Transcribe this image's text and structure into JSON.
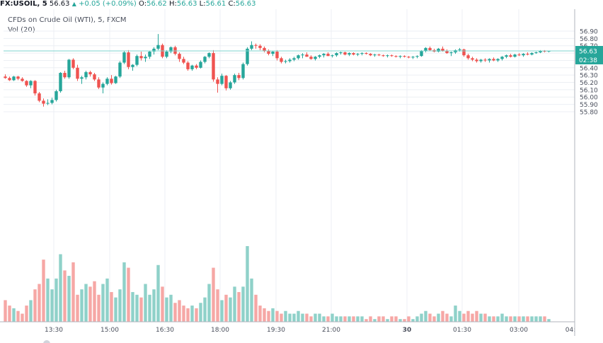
{
  "header": {
    "symbol": "FX:USOIL, 5",
    "last": "56.63",
    "change": "+0.05 (+0.09%)",
    "o_label": "O:",
    "o": "56.62",
    "h_label": "H:",
    "h": "56.63",
    "l_label": "L:",
    "l": "56.61",
    "c_label": "C:",
    "c": "56.63"
  },
  "legend": {
    "title": "CFDs on Crude Oil (WTI), 5, FXCM",
    "volume": "Vol (20)"
  },
  "colors": {
    "up": "#26a69a",
    "down": "#ef5350",
    "up_volume": "#8fd1c9",
    "down_volume": "#f6a7a5",
    "price_line": "#7fd6cf",
    "grid": "#eceff4"
  },
  "chart_data": {
    "type": "candlestick",
    "y_ticks": [
      "56.90",
      "56.80",
      "56.70",
      "56.60",
      "56.50",
      "56.40",
      "56.30",
      "56.20",
      "56.10",
      "56.00",
      "55.90",
      "55.80"
    ],
    "ylim": [
      55.75,
      56.95
    ],
    "x_ticks": [
      "13:30",
      "15:00",
      "16:30",
      "18:00",
      "19:30",
      "21:00",
      "30",
      "01:30",
      "03:00",
      "04:"
    ],
    "x_ticks_bold": [
      "30"
    ],
    "last_price_label": "56.63",
    "countdown_label": "02:38",
    "grid": true,
    "bar_interval": "5 min",
    "first_bar": "12:30",
    "ohlc": [
      [
        56.28,
        56.31,
        56.25,
        56.26
      ],
      [
        56.26,
        56.28,
        56.22,
        56.23
      ],
      [
        56.23,
        56.29,
        56.22,
        56.28
      ],
      [
        56.28,
        56.29,
        56.23,
        56.25
      ],
      [
        56.25,
        56.27,
        56.21,
        56.22
      ],
      [
        56.22,
        56.23,
        56.14,
        56.16
      ],
      [
        56.16,
        56.23,
        56.12,
        56.22
      ],
      [
        56.22,
        56.23,
        56.02,
        56.05
      ],
      [
        56.05,
        56.07,
        55.93,
        55.95
      ],
      [
        55.95,
        55.98,
        55.87,
        55.91
      ],
      [
        55.91,
        55.97,
        55.89,
        55.92
      ],
      [
        55.92,
        55.99,
        55.9,
        55.96
      ],
      [
        55.96,
        56.1,
        55.94,
        56.08
      ],
      [
        56.08,
        56.34,
        56.06,
        56.33
      ],
      [
        56.33,
        56.36,
        56.25,
        56.27
      ],
      [
        56.27,
        56.52,
        56.25,
        56.51
      ],
      [
        56.51,
        56.53,
        56.38,
        56.4
      ],
      [
        56.4,
        56.44,
        56.22,
        56.25
      ],
      [
        56.25,
        56.29,
        56.18,
        56.27
      ],
      [
        56.27,
        56.36,
        56.24,
        56.34
      ],
      [
        56.34,
        56.36,
        56.28,
        56.31
      ],
      [
        56.31,
        56.33,
        56.22,
        56.24
      ],
      [
        56.24,
        56.27,
        56.11,
        56.13
      ],
      [
        56.13,
        56.2,
        56.05,
        56.18
      ],
      [
        56.18,
        56.27,
        56.16,
        56.25
      ],
      [
        56.25,
        56.3,
        56.17,
        56.19
      ],
      [
        56.19,
        56.29,
        56.18,
        56.28
      ],
      [
        56.28,
        56.49,
        56.26,
        56.47
      ],
      [
        56.47,
        56.63,
        56.45,
        56.61
      ],
      [
        56.61,
        56.64,
        56.38,
        56.41
      ],
      [
        56.41,
        56.45,
        56.36,
        56.44
      ],
      [
        56.44,
        56.58,
        56.42,
        56.56
      ],
      [
        56.56,
        56.62,
        56.5,
        56.53
      ],
      [
        56.53,
        56.58,
        56.48,
        56.55
      ],
      [
        56.55,
        56.63,
        56.52,
        56.62
      ],
      [
        56.62,
        56.68,
        56.58,
        56.66
      ],
      [
        56.66,
        56.86,
        56.64,
        56.71
      ],
      [
        56.71,
        56.73,
        56.53,
        56.55
      ],
      [
        56.55,
        56.64,
        56.53,
        56.62
      ],
      [
        56.62,
        56.69,
        56.6,
        56.68
      ],
      [
        56.68,
        56.7,
        56.57,
        56.59
      ],
      [
        56.59,
        56.61,
        56.48,
        56.52
      ],
      [
        56.52,
        56.55,
        56.45,
        56.47
      ],
      [
        56.47,
        56.49,
        56.36,
        56.38
      ],
      [
        56.38,
        56.44,
        56.36,
        56.43
      ],
      [
        56.43,
        56.45,
        56.38,
        56.4
      ],
      [
        56.4,
        56.5,
        56.39,
        56.48
      ],
      [
        56.48,
        56.56,
        56.46,
        56.55
      ],
      [
        56.55,
        56.61,
        56.53,
        56.6
      ],
      [
        56.6,
        56.64,
        56.21,
        56.24
      ],
      [
        56.24,
        56.27,
        56.06,
        56.18
      ],
      [
        56.18,
        56.32,
        56.16,
        56.29
      ],
      [
        56.29,
        56.3,
        56.09,
        56.12
      ],
      [
        56.12,
        56.22,
        56.1,
        56.2
      ],
      [
        56.2,
        56.32,
        56.18,
        56.3
      ],
      [
        56.3,
        56.33,
        56.23,
        56.26
      ],
      [
        56.26,
        56.47,
        56.24,
        56.45
      ],
      [
        56.45,
        56.68,
        56.43,
        56.66
      ],
      [
        56.66,
        56.76,
        56.64,
        56.71
      ],
      [
        56.71,
        56.73,
        56.66,
        56.7
      ],
      [
        56.7,
        56.72,
        56.64,
        56.67
      ],
      [
        56.67,
        56.69,
        56.61,
        56.63
      ],
      [
        56.63,
        56.65,
        56.57,
        56.59
      ],
      [
        56.59,
        56.63,
        56.56,
        56.62
      ],
      [
        56.62,
        56.64,
        56.5,
        56.53
      ],
      [
        56.53,
        56.55,
        56.46,
        56.48
      ],
      [
        56.48,
        56.51,
        56.46,
        56.49
      ],
      [
        56.49,
        56.53,
        56.47,
        56.51
      ],
      [
        56.51,
        56.55,
        56.49,
        56.53
      ],
      [
        56.53,
        56.58,
        56.51,
        56.57
      ],
      [
        56.57,
        56.6,
        56.53,
        56.58
      ],
      [
        56.58,
        56.61,
        56.55,
        56.55
      ],
      [
        56.55,
        56.57,
        56.51,
        56.52
      ],
      [
        56.52,
        56.56,
        56.5,
        56.55
      ],
      [
        56.55,
        56.58,
        56.53,
        56.57
      ],
      [
        56.57,
        56.6,
        56.54,
        56.59
      ],
      [
        56.59,
        56.61,
        56.56,
        56.56
      ],
      [
        56.56,
        56.58,
        56.54,
        56.57
      ],
      [
        56.57,
        56.61,
        56.55,
        56.6
      ],
      [
        56.6,
        56.62,
        56.58,
        56.61
      ],
      [
        56.61,
        56.62,
        56.57,
        56.58
      ],
      [
        56.58,
        56.61,
        56.56,
        56.6
      ],
      [
        56.6,
        56.61,
        56.57,
        56.58
      ],
      [
        56.58,
        56.6,
        56.56,
        56.59
      ],
      [
        56.59,
        56.61,
        56.57,
        56.6
      ],
      [
        56.6,
        56.61,
        56.58,
        56.59
      ],
      [
        56.59,
        56.6,
        56.56,
        56.57
      ],
      [
        56.57,
        56.59,
        56.55,
        56.58
      ],
      [
        56.58,
        56.59,
        56.56,
        56.57
      ],
      [
        56.57,
        56.58,
        56.55,
        56.56
      ],
      [
        56.56,
        56.58,
        56.54,
        56.57
      ],
      [
        56.57,
        56.58,
        56.55,
        56.56
      ],
      [
        56.56,
        56.57,
        56.54,
        56.55
      ],
      [
        56.55,
        56.57,
        56.53,
        56.56
      ],
      [
        56.56,
        56.57,
        56.54,
        56.55
      ],
      [
        56.55,
        56.56,
        56.53,
        56.54
      ],
      [
        56.54,
        56.56,
        56.52,
        56.55
      ],
      [
        56.55,
        56.57,
        56.53,
        56.56
      ],
      [
        56.56,
        56.64,
        56.55,
        56.63
      ],
      [
        56.63,
        56.68,
        56.61,
        56.67
      ],
      [
        56.67,
        56.69,
        56.63,
        56.64
      ],
      [
        56.64,
        56.66,
        56.61,
        56.62
      ],
      [
        56.62,
        56.67,
        56.61,
        56.66
      ],
      [
        56.66,
        56.69,
        56.62,
        56.63
      ],
      [
        56.63,
        56.65,
        56.59,
        56.6
      ],
      [
        56.6,
        56.62,
        56.56,
        56.61
      ],
      [
        56.61,
        56.65,
        56.59,
        56.64
      ],
      [
        56.64,
        56.67,
        56.62,
        56.65
      ],
      [
        56.65,
        56.66,
        56.55,
        56.57
      ],
      [
        56.57,
        56.59,
        56.51,
        56.53
      ],
      [
        56.53,
        56.55,
        56.49,
        56.51
      ],
      [
        56.51,
        56.53,
        56.47,
        56.49
      ],
      [
        56.49,
        56.52,
        56.47,
        56.51
      ],
      [
        56.51,
        56.53,
        56.48,
        56.5
      ],
      [
        56.5,
        56.53,
        56.47,
        56.52
      ],
      [
        56.52,
        56.54,
        56.49,
        56.5
      ],
      [
        56.5,
        56.53,
        56.48,
        56.52
      ],
      [
        56.52,
        56.56,
        56.5,
        56.55
      ],
      [
        56.55,
        56.58,
        56.53,
        56.57
      ],
      [
        56.57,
        56.59,
        56.54,
        56.55
      ],
      [
        56.55,
        56.59,
        56.54,
        56.58
      ],
      [
        56.58,
        56.6,
        56.56,
        56.57
      ],
      [
        56.57,
        56.6,
        56.55,
        56.59
      ],
      [
        56.59,
        56.61,
        56.57,
        56.58
      ],
      [
        56.58,
        56.61,
        56.57,
        56.6
      ],
      [
        56.6,
        56.62,
        56.59,
        56.61
      ],
      [
        56.61,
        56.64,
        56.6,
        56.63
      ],
      [
        56.63,
        56.64,
        56.61,
        56.62
      ],
      [
        56.62,
        56.63,
        56.61,
        56.63
      ]
    ],
    "volume": [
      8,
      6,
      5,
      4,
      3,
      6,
      8,
      12,
      14,
      23,
      16,
      12,
      16,
      25,
      19,
      17,
      22,
      10,
      12,
      14,
      13,
      15,
      10,
      14,
      16,
      11,
      9,
      12,
      22,
      20,
      11,
      10,
      9,
      14,
      10,
      12,
      21,
      13,
      9,
      10,
      7,
      8,
      6,
      5,
      6,
      5,
      7,
      9,
      14,
      20,
      12,
      8,
      10,
      9,
      13,
      11,
      13,
      28,
      16,
      10,
      6,
      5,
      4,
      5,
      4,
      3,
      4,
      3,
      3,
      4,
      3,
      3,
      2,
      3,
      3,
      2,
      2,
      3,
      2,
      2,
      2,
      2,
      2,
      2,
      2,
      1,
      2,
      1,
      2,
      2,
      1,
      2,
      2,
      1,
      1,
      2,
      1,
      2,
      3,
      4,
      3,
      2,
      3,
      4,
      3,
      2,
      6,
      4,
      3,
      4,
      3,
      4,
      3,
      3,
      2,
      2,
      2,
      3,
      2,
      2,
      2,
      2,
      2,
      2,
      2,
      2,
      2,
      2,
      1
    ]
  }
}
